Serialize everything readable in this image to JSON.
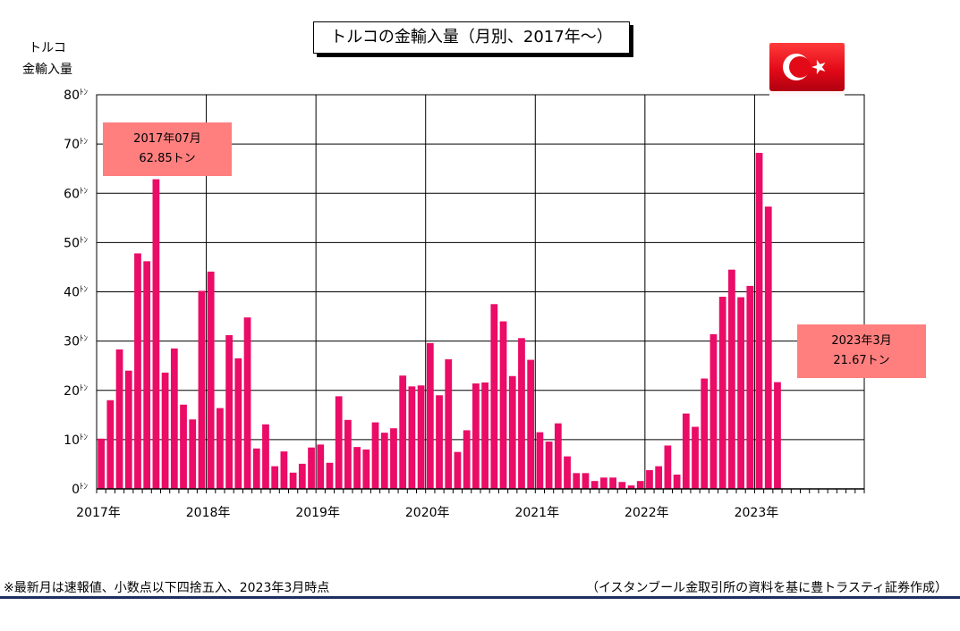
{
  "title": "トルコの金輸入量（月別、2017年～）",
  "ylabel_line1": "トルコ",
  "ylabel_line2": "金輸入量",
  "callout_peak": {
    "line1": "2017年07月",
    "line2": "62.85トン"
  },
  "callout_latest": {
    "line1": "2023年3月",
    "line2": "21.67トン"
  },
  "note_left": "※最新月は速報値、小数点以下四捨五入、2023年3月時点",
  "note_right": "（イスタンブール金取引所の資料を基に豊トラスティ証券作成）",
  "flag_icon": "turkey-flag-icon",
  "colors": {
    "bar": "#ea0c66",
    "callout": "#ff7f7f",
    "flag_red": "#e30a17",
    "footer_line": "#1f2f5f"
  },
  "chart_data": {
    "type": "bar",
    "title": "トルコの金輸入量（月別、2017年～）",
    "ylabel": "トルコ 金輸入量",
    "y_unit": "ﾄﾝ",
    "ylim": [
      0,
      80
    ],
    "yticks": [
      0,
      10,
      20,
      30,
      40,
      50,
      60,
      70,
      80
    ],
    "grid": true,
    "x_axis_months": 84,
    "year_labels": [
      "2017年",
      "2018年",
      "2019年",
      "2020年",
      "2021年",
      "2022年",
      "2023年"
    ],
    "series": [
      {
        "values": [
          10.2,
          18.0,
          28.3,
          24.0,
          47.8,
          46.2,
          62.85,
          23.6,
          28.5,
          17.1,
          14.1,
          40.2,
          44.1,
          16.4,
          31.2,
          26.5,
          34.8,
          8.2,
          13.1,
          4.6,
          7.6,
          3.3,
          5.1,
          8.4,
          9.0,
          5.3,
          18.8,
          14.0,
          8.5,
          8.0,
          13.5,
          11.4,
          12.3,
          23.0,
          20.8,
          21.0,
          29.6,
          19.0,
          26.3,
          7.5,
          11.9,
          21.4,
          21.6,
          37.5,
          34.0,
          22.9,
          30.6,
          26.2,
          11.5,
          9.6,
          13.3,
          6.6,
          3.2,
          3.2,
          1.6,
          2.3,
          2.3,
          1.4,
          0.7,
          1.6,
          3.8,
          4.6,
          8.8,
          2.9,
          15.3,
          12.6,
          22.4,
          31.4,
          39.0,
          44.5,
          38.9,
          41.2,
          68.2,
          57.3,
          21.67
        ]
      }
    ]
  }
}
